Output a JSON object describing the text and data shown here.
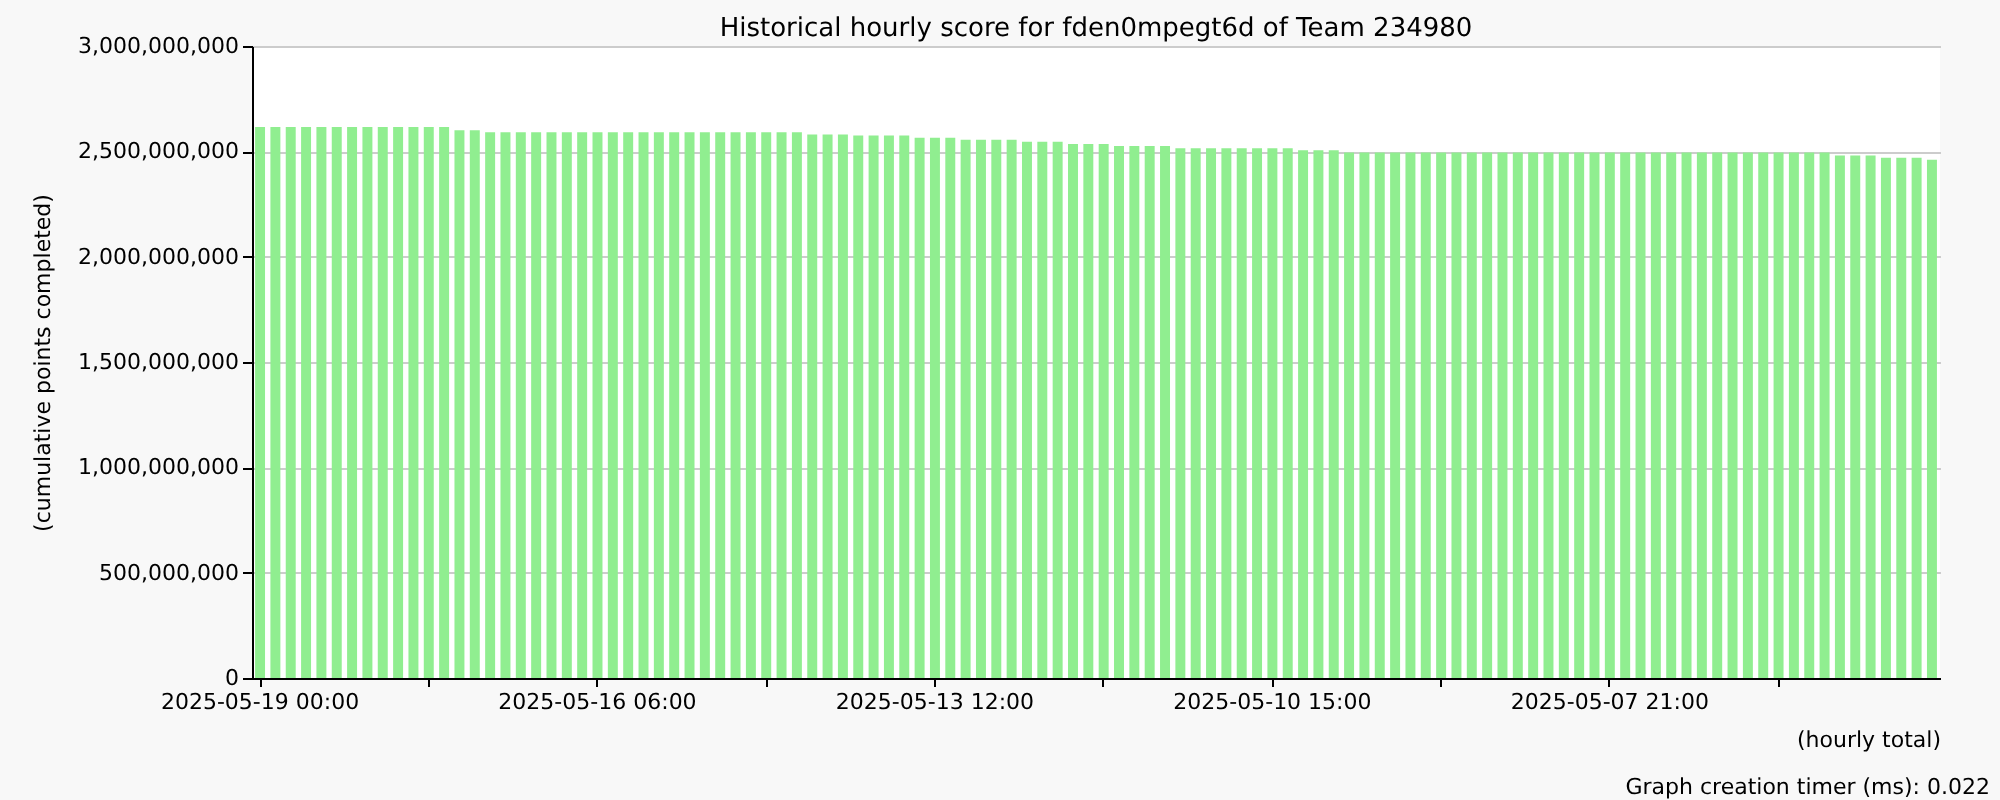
{
  "chart_data": {
    "type": "bar",
    "title": "Historical hourly score for fden0mpegt6d of Team 234980",
    "xlabel": "(hourly total)",
    "ylabel": "(cumulative points completed)",
    "categories": [
      "2025-05-19 00:00",
      null,
      null,
      null,
      null,
      null,
      null,
      null,
      null,
      null,
      null,
      null,
      null,
      null,
      null,
      null,
      null,
      null,
      null,
      null,
      null,
      null,
      "2025-05-16 06:00",
      null,
      null,
      null,
      null,
      null,
      null,
      null,
      null,
      null,
      null,
      null,
      null,
      null,
      null,
      null,
      null,
      null,
      null,
      null,
      null,
      null,
      "2025-05-13 12:00",
      null,
      null,
      null,
      null,
      null,
      null,
      null,
      null,
      null,
      null,
      null,
      null,
      null,
      null,
      null,
      null,
      null,
      null,
      null,
      null,
      null,
      "2025-05-10 15:00",
      null,
      null,
      null,
      null,
      null,
      null,
      null,
      null,
      null,
      null,
      null,
      null,
      null,
      null,
      null,
      null,
      null,
      null,
      null,
      null,
      null,
      "2025-05-07 21:00",
      null,
      null,
      null,
      null,
      null,
      null,
      null,
      null,
      null,
      null,
      null,
      null,
      null,
      null,
      null,
      null,
      null,
      null,
      null,
      null,
      null
    ],
    "values": [
      2615000000,
      2615000000,
      2615000000,
      2615000000,
      2615000000,
      2615000000,
      2615000000,
      2615000000,
      2615000000,
      2615000000,
      2615000000,
      2615000000,
      2615000000,
      2600000000,
      2600000000,
      2590000000,
      2590000000,
      2590000000,
      2590000000,
      2590000000,
      2590000000,
      2590000000,
      2590000000,
      2590000000,
      2590000000,
      2590000000,
      2590000000,
      2590000000,
      2590000000,
      2590000000,
      2590000000,
      2590000000,
      2590000000,
      2590000000,
      2590000000,
      2590000000,
      2580000000,
      2580000000,
      2580000000,
      2575000000,
      2575000000,
      2575000000,
      2575000000,
      2565000000,
      2565000000,
      2565000000,
      2555000000,
      2555000000,
      2555000000,
      2555000000,
      2545000000,
      2545000000,
      2545000000,
      2535000000,
      2535000000,
      2535000000,
      2525000000,
      2525000000,
      2525000000,
      2525000000,
      2515000000,
      2515000000,
      2515000000,
      2515000000,
      2515000000,
      2515000000,
      2515000000,
      2515000000,
      2505000000,
      2505000000,
      2505000000,
      2495000000,
      2495000000,
      2495000000,
      2495000000,
      2495000000,
      2495000000,
      2495000000,
      2495000000,
      2495000000,
      2495000000,
      2495000000,
      2495000000,
      2495000000,
      2495000000,
      2495000000,
      2495000000,
      2495000000,
      2495000000,
      2495000000,
      2495000000,
      2495000000,
      2495000000,
      2495000000,
      2495000000,
      2495000000,
      2495000000,
      2495000000,
      2495000000,
      2495000000,
      2495000000,
      2495000000,
      2495000000,
      2480000000,
      2480000000,
      2480000000,
      2470000000,
      2470000000,
      2470000000,
      2460000000
    ],
    "color": "#90ee90",
    "ylim": [
      0,
      3000000000
    ],
    "yticks": [
      {
        "value": 0,
        "label": "0"
      },
      {
        "value": 500000000,
        "label": "500,000,000"
      },
      {
        "value": 1000000000,
        "label": "1,000,000,000"
      },
      {
        "value": 1500000000,
        "label": "1,500,000,000"
      },
      {
        "value": 2000000000,
        "label": "2,000,000,000"
      },
      {
        "value": 2500000000,
        "label": "2,500,000,000"
      },
      {
        "value": 3000000000,
        "label": "3,000,000,000"
      }
    ],
    "grid": "y",
    "annotations": [
      "Graph creation timer (ms): 0.022"
    ]
  }
}
